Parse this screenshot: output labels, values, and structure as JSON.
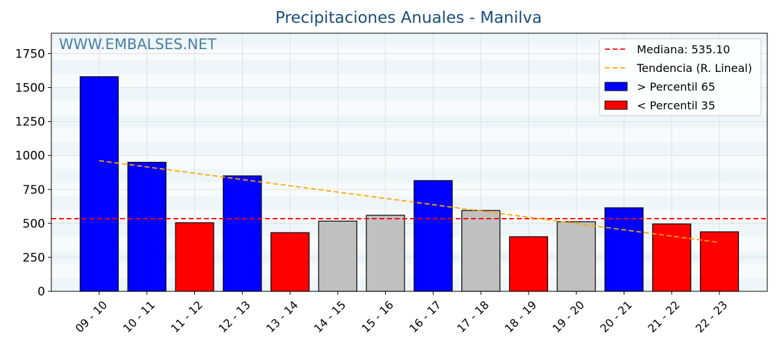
{
  "chart_data": {
    "type": "bar",
    "title": "Precipitaciones Anuales - Manilva",
    "watermark": "WWW.EMBALSES.NET",
    "xlabel": "",
    "ylabel": "",
    "ylim": [
      0,
      1900
    ],
    "yticks": [
      0,
      250,
      500,
      750,
      1000,
      1250,
      1500,
      1750
    ],
    "grid": true,
    "legend_position": "top-right",
    "categories": [
      "09 - 10",
      "10 - 11",
      "11 - 12",
      "12 - 13",
      "13 - 14",
      "14 - 15",
      "15 - 16",
      "16 - 17",
      "17 - 18",
      "18 - 19",
      "19 - 20",
      "20 - 21",
      "21 - 22",
      "22 - 23"
    ],
    "values": [
      1580,
      950,
      505,
      850,
      432,
      517,
      560,
      815,
      595,
      402,
      512,
      615,
      496,
      438
    ],
    "bar_colors": [
      "#0000ff",
      "#0000ff",
      "#ff0000",
      "#0000ff",
      "#ff0000",
      "#c0c0c0",
      "#c0c0c0",
      "#0000ff",
      "#c0c0c0",
      "#ff0000",
      "#c0c0c0",
      "#0000ff",
      "#ff0000",
      "#ff0000"
    ],
    "median": {
      "label": "Mediana: 535.10",
      "value": 535.1,
      "color": "#ff0000"
    },
    "trend": {
      "label": "Tendencia (R. Lineal)",
      "start": 962,
      "end": 360,
      "color": "#ffa500"
    },
    "legend": [
      {
        "label": "Mediana: 535.10",
        "kind": "dashed",
        "color": "#ff0000"
      },
      {
        "label": "Tendencia (R. Lineal)",
        "kind": "dashed",
        "color": "#ffa500"
      },
      {
        "label": " > Percentil 65",
        "kind": "box",
        "color": "#0000ff"
      },
      {
        "label": " < Percentil 35",
        "kind": "box",
        "color": "#ff0000"
      }
    ]
  }
}
